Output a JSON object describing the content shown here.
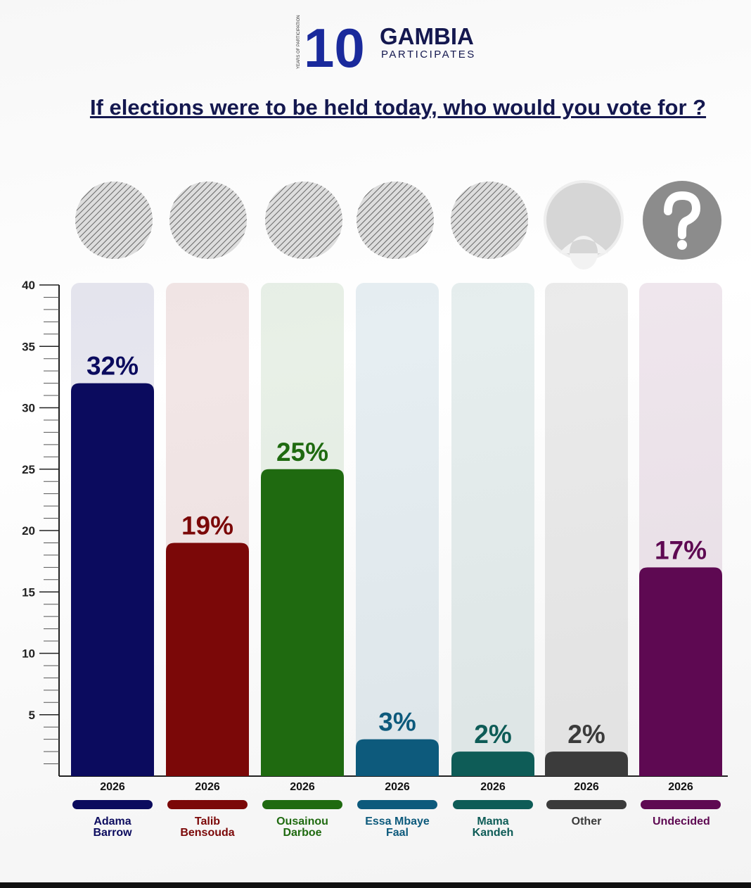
{
  "header": {
    "logo_number": "10",
    "logo_side_text": "YEARS OF PARTICIPATION",
    "brand": "GAMBIA",
    "brand_sub": "PARTICIPATES"
  },
  "chart_data": {
    "type": "bar",
    "title": "If elections were to be held today, who would you vote for ?",
    "categories": [
      "Adama Barrow",
      "Talib Bensouda",
      "Ousainou Darboe",
      "Essa Mbaye Faal",
      "Mama Kandeh",
      "Other",
      "Undecided"
    ],
    "values": [
      32,
      19,
      25,
      3,
      2,
      2,
      17
    ],
    "value_labels": [
      "32%",
      "19%",
      "25%",
      "3%",
      "2%",
      "2%",
      "17%"
    ],
    "colors": [
      "#0b0b5e",
      "#7b0808",
      "#1f6a10",
      "#0d5a7c",
      "#0e5c57",
      "#3b3b3b",
      "#5e0952"
    ],
    "year": "2026",
    "ylim": [
      0,
      40
    ],
    "yticks": [
      5,
      10,
      15,
      20,
      25,
      30,
      35,
      40
    ],
    "minor_yticks": [
      1,
      2,
      3,
      4,
      6,
      7,
      8,
      9,
      11,
      12,
      13,
      14,
      16,
      17,
      18,
      19,
      21,
      22,
      23,
      24,
      26,
      27,
      28,
      29,
      31,
      32,
      33,
      34,
      36,
      37,
      38,
      39
    ]
  }
}
